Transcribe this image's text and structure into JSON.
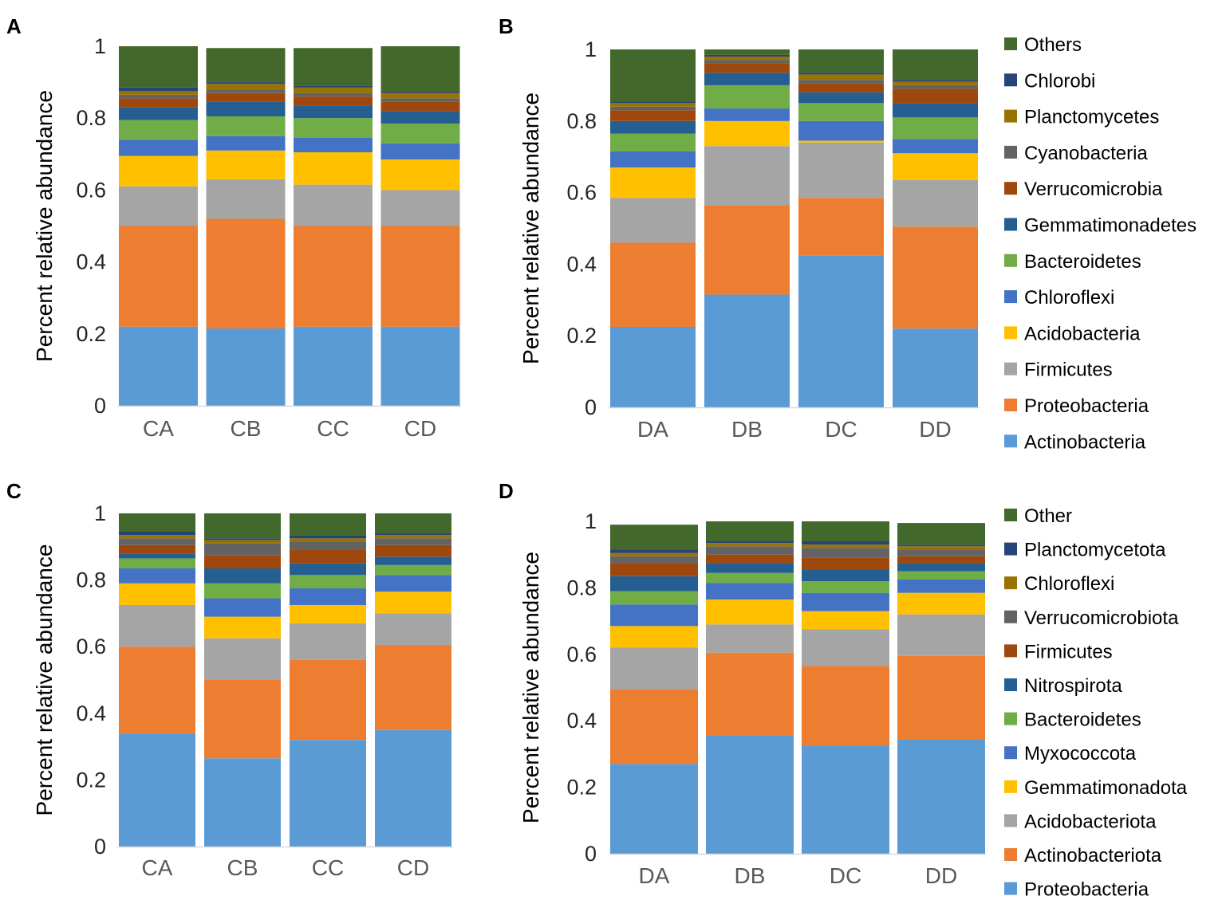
{
  "colors": {
    "Actinobacteria": "#5b9bd5",
    "Proteobacteria": "#ed7d31",
    "Firmicutes": "#a5a5a5",
    "Acidobacteria": "#ffc000",
    "Chloroflexi": "#4472c4",
    "Bacteroidetes": "#70ad47",
    "Gemmatimonadetes": "#255e91",
    "Verrucomicrobia": "#9e480e",
    "Cyanobacteria": "#636363",
    "Planctomycetes": "#997300",
    "Chlorobi": "#264478",
    "Others": "#43682b",
    "Proteobacteria_D": "#5b9bd5",
    "Actinobacteriota": "#ed7d31",
    "Acidobacteriota": "#a5a5a5",
    "Gemmatimonadota": "#ffc000",
    "Myxococcota": "#4472c4",
    "Bacteroidetes_D": "#70ad47",
    "Nitrospirota": "#255e91",
    "Firmicutes_D": "#9e480e",
    "Verrucomicrobiota": "#636363",
    "Chloroflexi_D": "#997300",
    "Planctomycetota": "#264478",
    "Other": "#43682b"
  },
  "chart_data": [
    {
      "panel": "A",
      "type": "bar",
      "stacked": true,
      "ylabel": "Percent relative abundance",
      "ylim": [
        0,
        1
      ],
      "yticks": [
        "0",
        "0.2",
        "0.4",
        "0.6",
        "0.8",
        "1"
      ],
      "categories": [
        "CA",
        "CB",
        "CC",
        "CD"
      ],
      "series": [
        {
          "name": "Actinobacteria",
          "values": [
            0.22,
            0.215,
            0.22,
            0.22
          ]
        },
        {
          "name": "Proteobacteria",
          "values": [
            0.28,
            0.305,
            0.28,
            0.28
          ]
        },
        {
          "name": "Firmicutes",
          "values": [
            0.11,
            0.11,
            0.115,
            0.1
          ]
        },
        {
          "name": "Acidobacteria",
          "values": [
            0.085,
            0.08,
            0.09,
            0.085
          ]
        },
        {
          "name": "Chloroflexi",
          "values": [
            0.045,
            0.04,
            0.04,
            0.045
          ]
        },
        {
          "name": "Bacteroidetes",
          "values": [
            0.055,
            0.055,
            0.055,
            0.055
          ]
        },
        {
          "name": "Gemmatimonadetes",
          "values": [
            0.035,
            0.04,
            0.035,
            0.035
          ]
        },
        {
          "name": "Verrucomicrobia",
          "values": [
            0.025,
            0.025,
            0.025,
            0.025
          ]
        },
        {
          "name": "Cyanobacteria",
          "values": [
            0.01,
            0.01,
            0.01,
            0.01
          ]
        },
        {
          "name": "Planctomycetes",
          "values": [
            0.01,
            0.015,
            0.015,
            0.015
          ]
        },
        {
          "name": "Chlorobi",
          "values": [
            0.01,
            0.005,
            0.005,
            0.005
          ]
        },
        {
          "name": "Others",
          "values": [
            0.115,
            0.095,
            0.105,
            0.125
          ]
        }
      ]
    },
    {
      "panel": "B",
      "type": "bar",
      "stacked": true,
      "ylabel": "Percent relative abundance",
      "ylim": [
        0,
        1
      ],
      "yticks": [
        "0",
        "0.2",
        "0.4",
        "0.6",
        "0.8",
        "1"
      ],
      "categories": [
        "DA",
        "DB",
        "DC",
        "DD"
      ],
      "series": [
        {
          "name": "Actinobacteria",
          "values": [
            0.225,
            0.315,
            0.425,
            0.22
          ]
        },
        {
          "name": "Proteobacteria",
          "values": [
            0.235,
            0.25,
            0.16,
            0.285
          ]
        },
        {
          "name": "Firmicutes",
          "values": [
            0.125,
            0.165,
            0.155,
            0.13
          ]
        },
        {
          "name": "Acidobacteria",
          "values": [
            0.085,
            0.07,
            0.005,
            0.075
          ]
        },
        {
          "name": "Chloroflexi",
          "values": [
            0.045,
            0.035,
            0.055,
            0.04
          ]
        },
        {
          "name": "Bacteroidetes",
          "values": [
            0.05,
            0.065,
            0.05,
            0.06
          ]
        },
        {
          "name": "Gemmatimonadetes",
          "values": [
            0.035,
            0.035,
            0.03,
            0.04
          ]
        },
        {
          "name": "Verrucomicrobia",
          "values": [
            0.03,
            0.025,
            0.025,
            0.04
          ]
        },
        {
          "name": "Cyanobacteria",
          "values": [
            0.01,
            0.01,
            0.01,
            0.01
          ]
        },
        {
          "name": "Planctomycetes",
          "values": [
            0.01,
            0.01,
            0.015,
            0.01
          ]
        },
        {
          "name": "Chlorobi",
          "values": [
            0.005,
            0.005,
            0.005,
            0.005
          ]
        },
        {
          "name": "Others",
          "values": [
            0.145,
            0.015,
            0.065,
            0.085
          ]
        }
      ]
    },
    {
      "panel": "C",
      "type": "bar",
      "stacked": true,
      "ylabel": "Percent relative abundance",
      "ylim": [
        0,
        1
      ],
      "yticks": [
        "0",
        "0.2",
        "0.4",
        "0.6",
        "0.8",
        "1"
      ],
      "categories": [
        "CA",
        "CB",
        "CC",
        "CD"
      ],
      "series": [
        {
          "name": "Actinobacteria",
          "values": [
            0.34,
            0.265,
            0.32,
            0.35
          ]
        },
        {
          "name": "Proteobacteria",
          "values": [
            0.26,
            0.235,
            0.24,
            0.255
          ]
        },
        {
          "name": "Firmicutes",
          "values": [
            0.125,
            0.125,
            0.11,
            0.095
          ]
        },
        {
          "name": "Acidobacteria",
          "values": [
            0.065,
            0.065,
            0.055,
            0.065
          ]
        },
        {
          "name": "Chloroflexi",
          "values": [
            0.045,
            0.055,
            0.05,
            0.05
          ]
        },
        {
          "name": "Bacteroidetes",
          "values": [
            0.03,
            0.045,
            0.04,
            0.03
          ]
        },
        {
          "name": "Gemmatimonadetes",
          "values": [
            0.015,
            0.045,
            0.035,
            0.025
          ]
        },
        {
          "name": "Verrucomicrobia",
          "values": [
            0.025,
            0.04,
            0.04,
            0.035
          ]
        },
        {
          "name": "Cyanobacteria",
          "values": [
            0.02,
            0.035,
            0.025,
            0.02
          ]
        },
        {
          "name": "Planctomycetes",
          "values": [
            0.01,
            0.01,
            0.01,
            0.01
          ]
        },
        {
          "name": "Chlorobi",
          "values": [
            0.01,
            0.005,
            0.01,
            0.005
          ]
        },
        {
          "name": "Others",
          "values": [
            0.055,
            0.075,
            0.065,
            0.06
          ]
        }
      ]
    },
    {
      "panel": "D",
      "type": "bar",
      "stacked": true,
      "ylabel": "Percent relative abundance",
      "ylim": [
        0,
        1
      ],
      "yticks": [
        "0",
        "0.2",
        "0.4",
        "0.6",
        "0.8",
        "1"
      ],
      "categories": [
        "DA",
        "DB",
        "DC",
        "DD"
      ],
      "series": [
        {
          "name": "Proteobacteria",
          "values": [
            0.27,
            0.355,
            0.325,
            0.345
          ]
        },
        {
          "name": "Actinobacteriota",
          "values": [
            0.225,
            0.25,
            0.24,
            0.25
          ]
        },
        {
          "name": "Acidobacteriota",
          "values": [
            0.125,
            0.085,
            0.11,
            0.125
          ]
        },
        {
          "name": "Gemmatimonadota",
          "values": [
            0.065,
            0.075,
            0.055,
            0.065
          ]
        },
        {
          "name": "Myxococcota",
          "values": [
            0.065,
            0.05,
            0.055,
            0.04
          ]
        },
        {
          "name": "Bacteroidetes",
          "values": [
            0.04,
            0.03,
            0.035,
            0.025
          ]
        },
        {
          "name": "Nitrospirota",
          "values": [
            0.045,
            0.03,
            0.035,
            0.025
          ]
        },
        {
          "name": "Firmicutes",
          "values": [
            0.04,
            0.025,
            0.035,
            0.02
          ]
        },
        {
          "name": "Verrucomicrobiota",
          "values": [
            0.02,
            0.025,
            0.03,
            0.02
          ]
        },
        {
          "name": "Chloroflexi",
          "values": [
            0.01,
            0.01,
            0.01,
            0.01
          ]
        },
        {
          "name": "Planctomycetota",
          "values": [
            0.01,
            0.005,
            0.01,
            0.005
          ]
        },
        {
          "name": "Other",
          "values": [
            0.075,
            0.06,
            0.06,
            0.065
          ]
        }
      ]
    }
  ],
  "legends": [
    {
      "for": "B",
      "items": [
        "Others",
        "Chlorobi",
        "Planctomycetes",
        "Cyanobacteria",
        "Verrucomicrobia",
        "Gemmatimonadetes",
        "Bacteroidetes",
        "Chloroflexi",
        "Acidobacteria",
        "Firmicutes",
        "Proteobacteria",
        "Actinobacteria"
      ]
    },
    {
      "for": "D",
      "items": [
        "Other",
        "Planctomycetota",
        "Chloroflexi",
        "Verrucomicrobiota",
        "Firmicutes",
        "Nitrospirota",
        "Bacteroidetes",
        "Myxococcota",
        "Gemmatimonadota",
        "Acidobacteriota",
        "Actinobacteriota",
        "Proteobacteria"
      ]
    }
  ]
}
